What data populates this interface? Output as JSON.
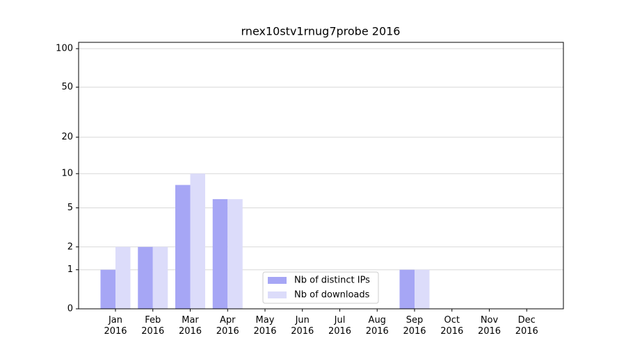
{
  "chart_data": {
    "type": "bar",
    "title": "rnex10stv1rnug7probe 2016",
    "categories": [
      "Jan\n2016",
      "Feb\n2016",
      "Mar\n2016",
      "Apr\n2016",
      "May\n2016",
      "Jun\n2016",
      "Jul\n2016",
      "Aug\n2016",
      "Sep\n2016",
      "Oct\n2016",
      "Nov\n2016",
      "Dec\n2016"
    ],
    "series": [
      {
        "name": "Nb of distinct IPs",
        "color": "#a6a6f5",
        "values": [
          1,
          2,
          8,
          6,
          0,
          0,
          0,
          0,
          1,
          0,
          0,
          0
        ]
      },
      {
        "name": "Nb of downloads",
        "color": "#dcdcfa",
        "values": [
          2,
          2,
          10,
          6,
          0,
          0,
          0,
          0,
          1,
          0,
          0,
          0
        ]
      }
    ],
    "yscale": "log1p",
    "ylim": [
      0,
      112
    ],
    "yticks": [
      0,
      1,
      2,
      5,
      10,
      20,
      50,
      100
    ],
    "grid": true,
    "legend": "lower center"
  }
}
